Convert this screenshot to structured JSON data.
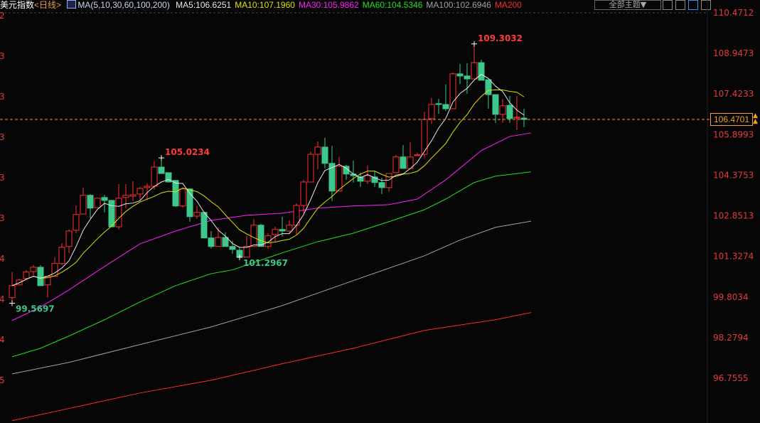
{
  "header": {
    "title": "美元指数",
    "period": "<日线>",
    "ma_params": "MA(5,10,30,60,100,200)",
    "ma_values": [
      {
        "label": "MA5:106.6251",
        "color": "#e8e8e8"
      },
      {
        "label": "MA10:107.1960",
        "color": "#e0e000"
      },
      {
        "label": "MA30:105.9862",
        "color": "#ff20ff"
      },
      {
        "label": "MA60:104.5346",
        "color": "#20e020"
      },
      {
        "label": "MA100:102.6946",
        "color": "#a0a0a0"
      },
      {
        "label": "MA200",
        "color": "#ff2a2a"
      }
    ]
  },
  "toolbar": {
    "theme_label": "全部主题▼",
    "icons": [
      "crosshair-icon",
      "interval-icon",
      "cursor-icon",
      "exit-icon"
    ]
  },
  "current_price": "106.4701",
  "left_axis_fragments": [
    "2",
    "3",
    "3",
    "3",
    "3",
    "3",
    "4",
    "4",
    "4",
    "5"
  ],
  "chart_data": {
    "type": "candlestick",
    "y_ticks": [
      "110.4712",
      "108.9473",
      "107.4233",
      "105.8993",
      "104.3753",
      "102.8513",
      "101.3274",
      "99.8034",
      "98.2794",
      "96.7555"
    ],
    "ylim": [
      96.7555,
      110.4712
    ],
    "colors": {
      "up": "#ff3030",
      "down": "#3cc88a",
      "ma5": "#e8e8e8",
      "ma10": "#e0e000",
      "ma30": "#ff20ff",
      "ma60": "#20e020",
      "ma100": "#a0a0a0",
      "ma200": "#ff2a2a",
      "last_price": "#f0a030"
    },
    "ohlc": [
      [
        99.78,
        100.74,
        99.57,
        100.23
      ],
      [
        100.26,
        100.5,
        100.26,
        100.44
      ],
      [
        100.5,
        100.82,
        100.44,
        100.74
      ],
      [
        100.76,
        101.0,
        100.63,
        100.92
      ],
      [
        100.92,
        101.0,
        100.23,
        100.23
      ],
      [
        100.26,
        100.58,
        99.78,
        100.58
      ],
      [
        100.58,
        101.3,
        100.58,
        101.06
      ],
      [
        101.06,
        101.83,
        101.0,
        101.67
      ],
      [
        101.7,
        102.34,
        101.46,
        102.28
      ],
      [
        102.31,
        103.24,
        102.2,
        102.9
      ],
      [
        102.92,
        103.91,
        102.92,
        103.62
      ],
      [
        103.62,
        103.67,
        102.76,
        103.14
      ],
      [
        103.16,
        103.51,
        103.16,
        103.51
      ],
      [
        103.54,
        103.64,
        102.98,
        103.43
      ],
      [
        103.43,
        103.43,
        102.44,
        102.44
      ],
      [
        102.44,
        104.04,
        102.34,
        103.51
      ],
      [
        103.54,
        104.04,
        103.14,
        103.62
      ],
      [
        103.59,
        104.15,
        103.4,
        103.64
      ],
      [
        103.67,
        103.94,
        103.43,
        103.88
      ],
      [
        103.91,
        104.07,
        103.46,
        103.96
      ],
      [
        103.96,
        104.9,
        103.83,
        104.68
      ],
      [
        104.68,
        105.02,
        104.44,
        104.44
      ],
      [
        104.47,
        104.47,
        104.1,
        104.12
      ],
      [
        104.18,
        104.18,
        103.19,
        103.22
      ],
      [
        103.22,
        103.86,
        103.16,
        103.86
      ],
      [
        103.86,
        103.86,
        102.63,
        102.82
      ],
      [
        102.84,
        103.22,
        102.74,
        102.98
      ],
      [
        102.98,
        102.98,
        102.02,
        102.02
      ],
      [
        102.02,
        102.28,
        101.62,
        101.7
      ],
      [
        101.7,
        102.42,
        101.7,
        102.04
      ],
      [
        102.04,
        102.23,
        101.7,
        101.7
      ],
      [
        101.7,
        101.91,
        101.43,
        101.59
      ],
      [
        101.56,
        101.67,
        101.3,
        101.3
      ],
      [
        101.3,
        102.1,
        101.3,
        101.7
      ],
      [
        101.7,
        102.74,
        101.7,
        102.5
      ],
      [
        102.5,
        102.55,
        101.7,
        101.7
      ],
      [
        101.7,
        102.2,
        101.62,
        102.1
      ],
      [
        102.15,
        102.44,
        101.88,
        102.34
      ],
      [
        102.34,
        102.82,
        102.07,
        102.28
      ],
      [
        102.28,
        102.68,
        102.2,
        102.5
      ],
      [
        102.5,
        103.32,
        102.15,
        103.24
      ],
      [
        103.24,
        104.2,
        102.95,
        104.12
      ],
      [
        104.12,
        105.27,
        104.12,
        105.16
      ],
      [
        105.16,
        105.64,
        104.6,
        105.43
      ],
      [
        105.43,
        105.78,
        104.63,
        104.82
      ],
      [
        104.82,
        105.48,
        103.4,
        103.78
      ],
      [
        103.78,
        105.06,
        103.78,
        104.71
      ],
      [
        104.71,
        104.76,
        104.2,
        104.42
      ],
      [
        104.42,
        104.92,
        104.1,
        104.36
      ],
      [
        104.31,
        104.47,
        103.94,
        104.15
      ],
      [
        104.15,
        104.74,
        104.04,
        104.36
      ],
      [
        104.31,
        104.52,
        103.94,
        104.1
      ],
      [
        104.1,
        104.28,
        103.67,
        103.91
      ],
      [
        103.91,
        104.44,
        103.75,
        104.44
      ],
      [
        104.47,
        105.14,
        104.47,
        105.06
      ],
      [
        105.06,
        105.51,
        104.63,
        104.63
      ],
      [
        104.63,
        105.62,
        104.63,
        105.06
      ],
      [
        105.11,
        105.22,
        105.11,
        105.14
      ],
      [
        105.16,
        106.76,
        105.03,
        106.47
      ],
      [
        106.5,
        107.27,
        106.31,
        107.03
      ],
      [
        107.06,
        107.24,
        106.68,
        107.03
      ],
      [
        107.03,
        107.78,
        106.79,
        106.87
      ],
      [
        106.87,
        108.23,
        106.87,
        108.18
      ],
      [
        108.18,
        108.55,
        107.8,
        108.1
      ],
      [
        108.1,
        108.58,
        107.43,
        107.99
      ],
      [
        107.99,
        109.3,
        107.99,
        108.6
      ],
      [
        108.6,
        108.71,
        107.94,
        107.94
      ],
      [
        107.96,
        107.96,
        106.87,
        107.4
      ],
      [
        107.4,
        107.4,
        106.34,
        106.66
      ],
      [
        106.66,
        107.24,
        106.34,
        106.98
      ],
      [
        107.0,
        107.35,
        106.34,
        106.5
      ],
      [
        106.52,
        107.35,
        106.07,
        106.55
      ],
      [
        106.52,
        106.87,
        106.18,
        106.47
      ]
    ],
    "ma_long": {
      "ma30": [
        [
          0,
          98.92
        ],
        [
          4,
          99.43
        ],
        [
          8,
          100.07
        ],
        [
          13,
          100.95
        ],
        [
          18,
          101.8
        ],
        [
          23,
          102.28
        ],
        [
          28,
          102.68
        ],
        [
          33,
          102.87
        ],
        [
          38,
          102.95
        ],
        [
          43,
          103.14
        ],
        [
          48,
          103.22
        ],
        [
          53,
          103.27
        ],
        [
          57,
          103.48
        ],
        [
          61,
          104.2
        ],
        [
          66,
          105.3
        ],
        [
          70,
          105.83
        ],
        [
          73,
          105.96
        ]
      ],
      "ma60": [
        [
          0,
          97.56
        ],
        [
          4,
          97.88
        ],
        [
          8,
          98.34
        ],
        [
          13,
          98.95
        ],
        [
          18,
          99.62
        ],
        [
          23,
          100.23
        ],
        [
          28,
          100.68
        ],
        [
          31,
          100.82
        ],
        [
          38,
          101.46
        ],
        [
          43,
          101.88
        ],
        [
          48,
          102.2
        ],
        [
          53,
          102.63
        ],
        [
          58,
          103.08
        ],
        [
          61,
          103.48
        ],
        [
          65,
          104.1
        ],
        [
          68,
          104.34
        ],
        [
          73,
          104.5
        ]
      ],
      "ma100": [
        [
          0,
          96.92
        ],
        [
          8,
          97.35
        ],
        [
          18,
          98.02
        ],
        [
          28,
          98.68
        ],
        [
          38,
          99.48
        ],
        [
          48,
          100.42
        ],
        [
          58,
          101.35
        ],
        [
          63,
          101.94
        ],
        [
          68,
          102.42
        ],
        [
          73,
          102.65
        ]
      ],
      "ma200": [
        [
          0,
          95.16
        ],
        [
          8,
          95.62
        ],
        [
          18,
          96.2
        ],
        [
          28,
          96.68
        ],
        [
          38,
          97.3
        ],
        [
          48,
          97.88
        ],
        [
          58,
          98.55
        ],
        [
          68,
          98.95
        ],
        [
          73,
          99.22
        ]
      ]
    },
    "annotations": [
      {
        "text": "105.0234",
        "index": 21,
        "price": 105.0234,
        "kind": "high"
      },
      {
        "text": "109.3032",
        "index": 65,
        "price": 109.3032,
        "kind": "high"
      },
      {
        "text": "101.2967",
        "index": 32,
        "price": 101.2967,
        "kind": "low"
      },
      {
        "text": "99.5697",
        "index": 0,
        "price": 99.5697,
        "kind": "low"
      }
    ]
  }
}
